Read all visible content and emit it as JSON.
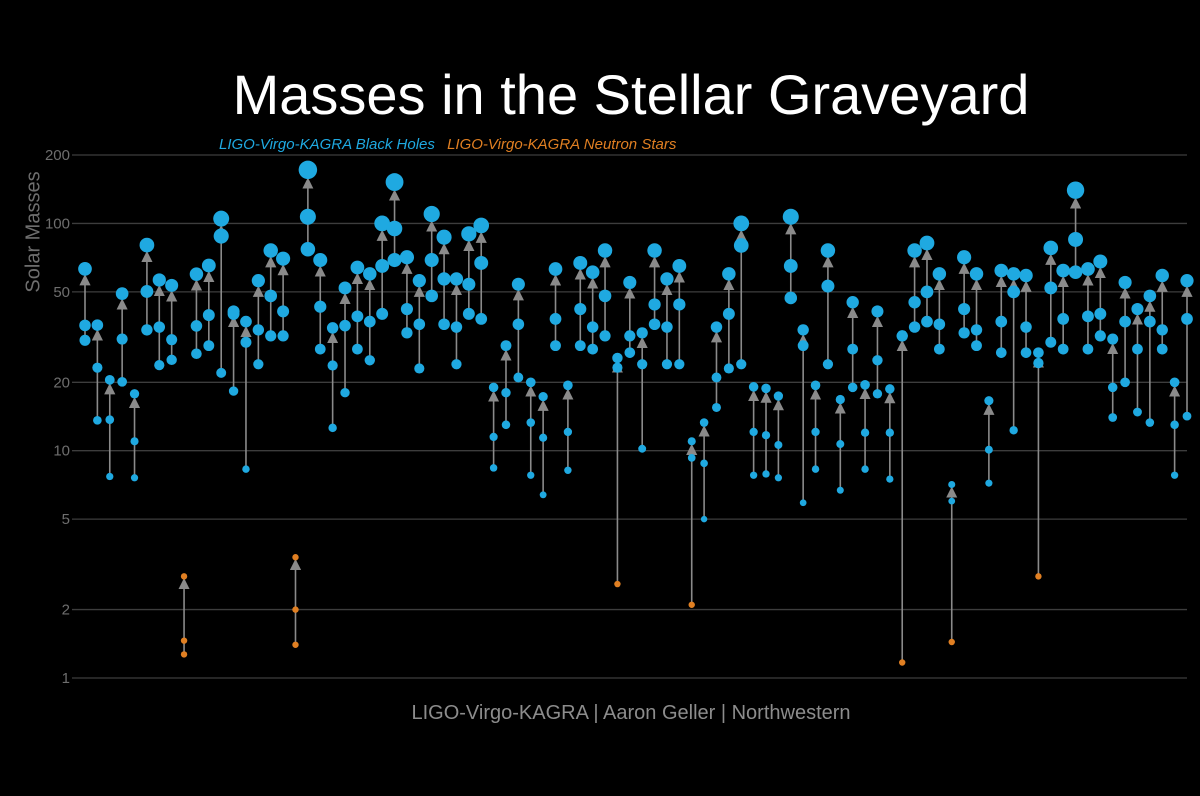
{
  "chart_data": {
    "type": "scatter",
    "title": "Masses in the Stellar Graveyard",
    "ylabel": "Solar Masses",
    "xlabel": "",
    "credit": "LIGO-Virgo-KAGRA | Aaron Geller | Northwestern",
    "yscale": "log",
    "ylim": [
      1,
      200
    ],
    "yticks": [
      1,
      2,
      5,
      10,
      20,
      50,
      100,
      200
    ],
    "ytick_labels": [
      "1",
      "2",
      "5",
      "10",
      "20",
      "50",
      "100",
      "200"
    ],
    "grid": true,
    "legend_position": "top-left",
    "series": [
      {
        "name": "LIGO-Virgo-KAGRA Black Holes",
        "color": "#1fa9e1"
      },
      {
        "name": "LIGO-Virgo-KAGRA Neutron Stars",
        "color": "#e07f22"
      }
    ],
    "arrow_color": "#8a8a8a",
    "mergers": [
      [
        35.6,
        30.6,
        63.1
      ],
      [
        23.2,
        13.6,
        35.7
      ],
      [
        13.7,
        7.7,
        20.5
      ],
      [
        31.0,
        20.1,
        49.1
      ],
      [
        11.0,
        7.6,
        17.8
      ],
      [
        50.2,
        34.0,
        80.3
      ],
      [
        35.0,
        23.8,
        56.4
      ],
      [
        30.8,
        25.1,
        53.4
      ],
      [
        1.46,
        1.27,
        2.8
      ],
      [
        35.4,
        26.7,
        59.8
      ],
      [
        39.5,
        29.0,
        65.3
      ],
      [
        88.0,
        22.0,
        105.0
      ],
      [
        41.0,
        18.3,
        40.0
      ],
      [
        30.0,
        8.3,
        37.0
      ],
      [
        34.0,
        24.0,
        56.0
      ],
      [
        48.0,
        32.0,
        76.0
      ],
      [
        41.0,
        32.0,
        70.0
      ],
      [
        2.0,
        1.4,
        3.4
      ],
      [
        107.0,
        77.0,
        172.0
      ],
      [
        43.0,
        28.0,
        69.0
      ],
      [
        23.7,
        12.6,
        34.7
      ],
      [
        35.5,
        18.0,
        52.0
      ],
      [
        39.0,
        28.0,
        64.0
      ],
      [
        37.0,
        25.0,
        60.0
      ],
      [
        65.0,
        40.0,
        100.0
      ],
      [
        95.0,
        69.0,
        152.0
      ],
      [
        42.0,
        33.0,
        71.0
      ],
      [
        36.0,
        23.0,
        56.0
      ],
      [
        69.0,
        48.0,
        110.0
      ],
      [
        57.0,
        36.0,
        87.0
      ],
      [
        35.0,
        24.0,
        57.0
      ],
      [
        54.0,
        40.0,
        90.0
      ],
      [
        67.0,
        38.0,
        98.0
      ],
      [
        11.5,
        8.4,
        19.0
      ],
      [
        18.0,
        13.0,
        29.0
      ],
      [
        36.0,
        21.0,
        54.0
      ],
      [
        13.3,
        7.8,
        20.0
      ],
      [
        11.4,
        6.4,
        17.3
      ],
      [
        38.0,
        29.0,
        63.0
      ],
      [
        12.1,
        8.2,
        19.4
      ],
      [
        42.0,
        29.0,
        67.0
      ],
      [
        35.0,
        28.0,
        61.0
      ],
      [
        48.0,
        32.0,
        76.0
      ],
      [
        23.2,
        2.59,
        25.6
      ],
      [
        32.0,
        27.0,
        55.0
      ],
      [
        24.0,
        10.2,
        33.0
      ],
      [
        44.0,
        36.0,
        76.0
      ],
      [
        35.0,
        24.0,
        57.0
      ],
      [
        44.0,
        24.0,
        65.0
      ],
      [
        9.3,
        2.1,
        11.0
      ],
      [
        8.8,
        5.0,
        13.3
      ],
      [
        21.0,
        15.5,
        35.0
      ],
      [
        40.0,
        23.0,
        60.0
      ],
      [
        80.0,
        24.0,
        100.0
      ],
      [
        12.1,
        7.8,
        19.1
      ],
      [
        11.7,
        7.9,
        18.8
      ],
      [
        10.6,
        7.6,
        17.4
      ],
      [
        65.0,
        47.0,
        107.0
      ],
      [
        29.0,
        5.9,
        34.0
      ],
      [
        12.1,
        8.3,
        19.4
      ],
      [
        53.0,
        24.0,
        76.0
      ],
      [
        10.7,
        6.7,
        16.8
      ],
      [
        28.0,
        19.0,
        45.0
      ],
      [
        12.0,
        8.3,
        19.5
      ],
      [
        25.0,
        17.8,
        41.0
      ],
      [
        12.0,
        7.5,
        18.7
      ],
      [
        32.0,
        1.17,
        32.0
      ],
      [
        45.0,
        35.0,
        76.0
      ],
      [
        50.0,
        37.0,
        82.0
      ],
      [
        36.0,
        28.0,
        60.0
      ],
      [
        6.0,
        1.44,
        7.1
      ],
      [
        42.0,
        33.0,
        71.0
      ],
      [
        34.0,
        29.0,
        60.0
      ],
      [
        10.1,
        7.2,
        16.6
      ],
      [
        37.0,
        27.0,
        62.0
      ],
      [
        50.0,
        12.3,
        60.0
      ],
      [
        35.0,
        27.0,
        59.0
      ],
      [
        24.3,
        2.8,
        27.0
      ],
      [
        52.0,
        30.0,
        78.0
      ],
      [
        38.0,
        28.0,
        62.0
      ],
      [
        85.0,
        61.0,
        140.0
      ],
      [
        39.0,
        28.0,
        63.0
      ],
      [
        40.0,
        32.0,
        68.0
      ],
      [
        19.0,
        14.0,
        31.0
      ],
      [
        37.0,
        20.0,
        55.0
      ],
      [
        28.0,
        14.8,
        42.0
      ],
      [
        37.0,
        13.3,
        48.0
      ],
      [
        34.0,
        28.0,
        59.0
      ],
      [
        20.0,
        7.8,
        13.0
      ],
      [
        38.0,
        14.2,
        56.0
      ]
    ],
    "neutron_star_objects": [
      1.27,
      1.46,
      2.8,
      1.4,
      2.0,
      3.4,
      2.59,
      2.1,
      1.17,
      1.44,
      2.8
    ]
  }
}
